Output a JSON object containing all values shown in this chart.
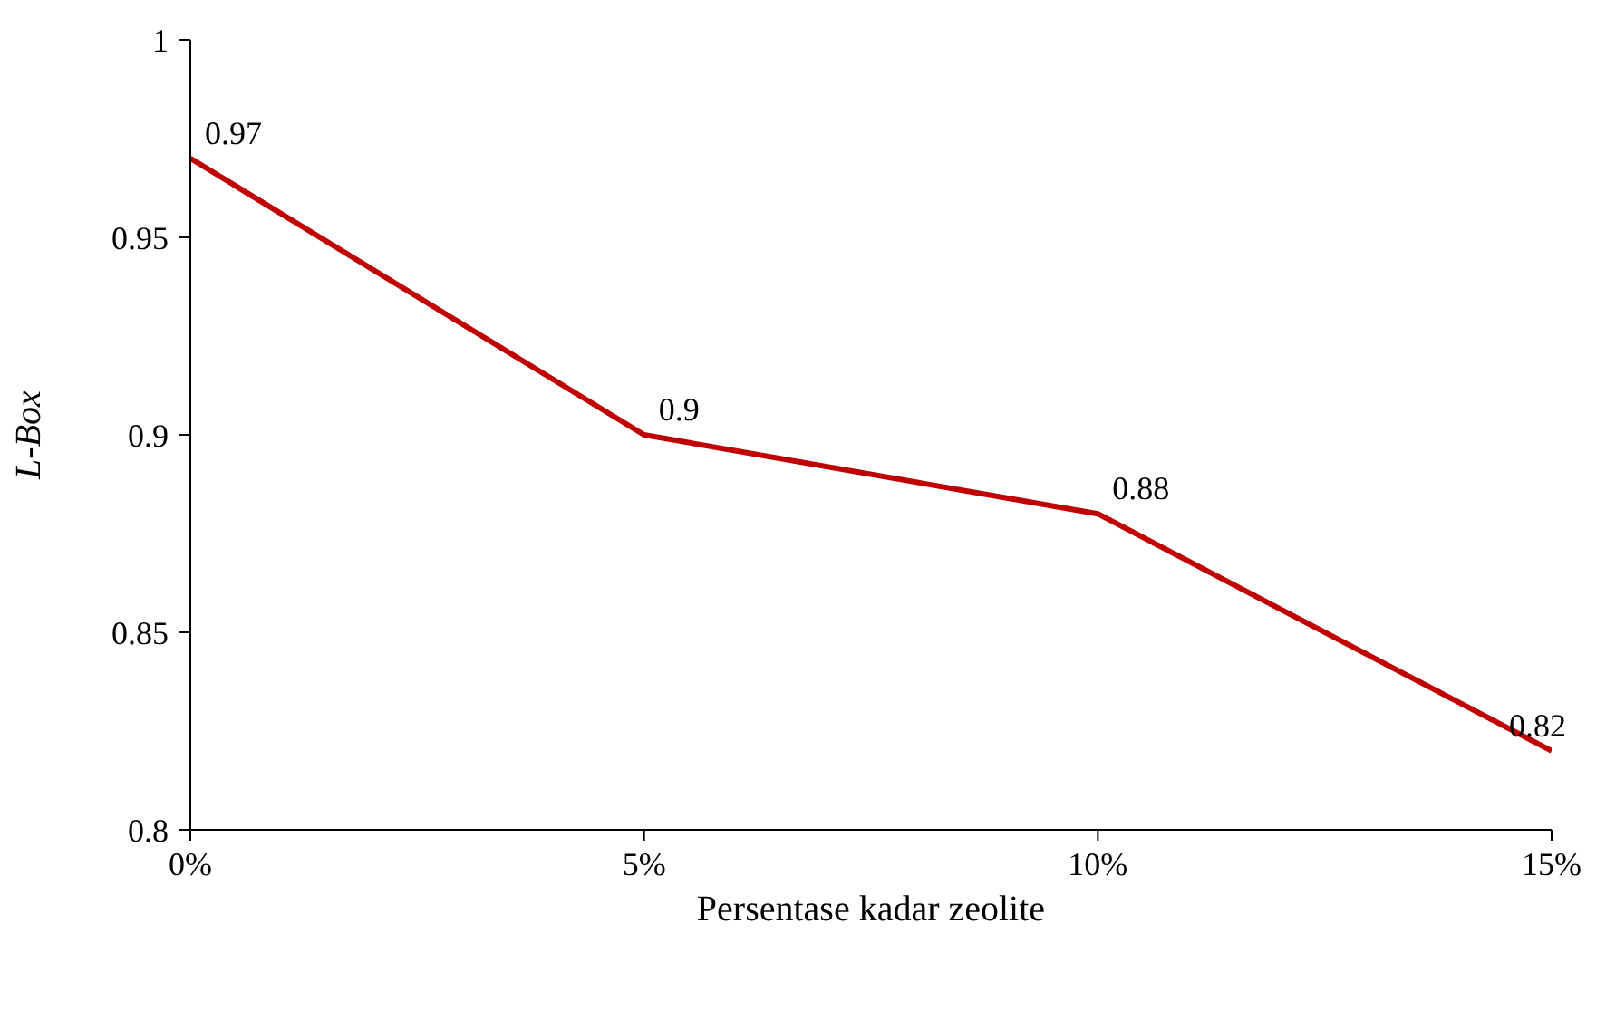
{
  "chart_data": {
    "type": "line",
    "xlabel": "Persentase kadar zeolite",
    "ylabel": "L-Box",
    "categories": [
      "0%",
      "5%",
      "10%",
      "15%"
    ],
    "series": [
      {
        "color": "#c00000",
        "values": [
          0.97,
          0.9,
          0.88,
          0.82
        ]
      }
    ],
    "ylim": [
      0.8,
      1
    ],
    "yticks": [
      0.8,
      0.85,
      0.9,
      0.95,
      1
    ],
    "grid": false,
    "legend": false,
    "marker": "none",
    "line_style": "solid",
    "data_labels": true
  }
}
